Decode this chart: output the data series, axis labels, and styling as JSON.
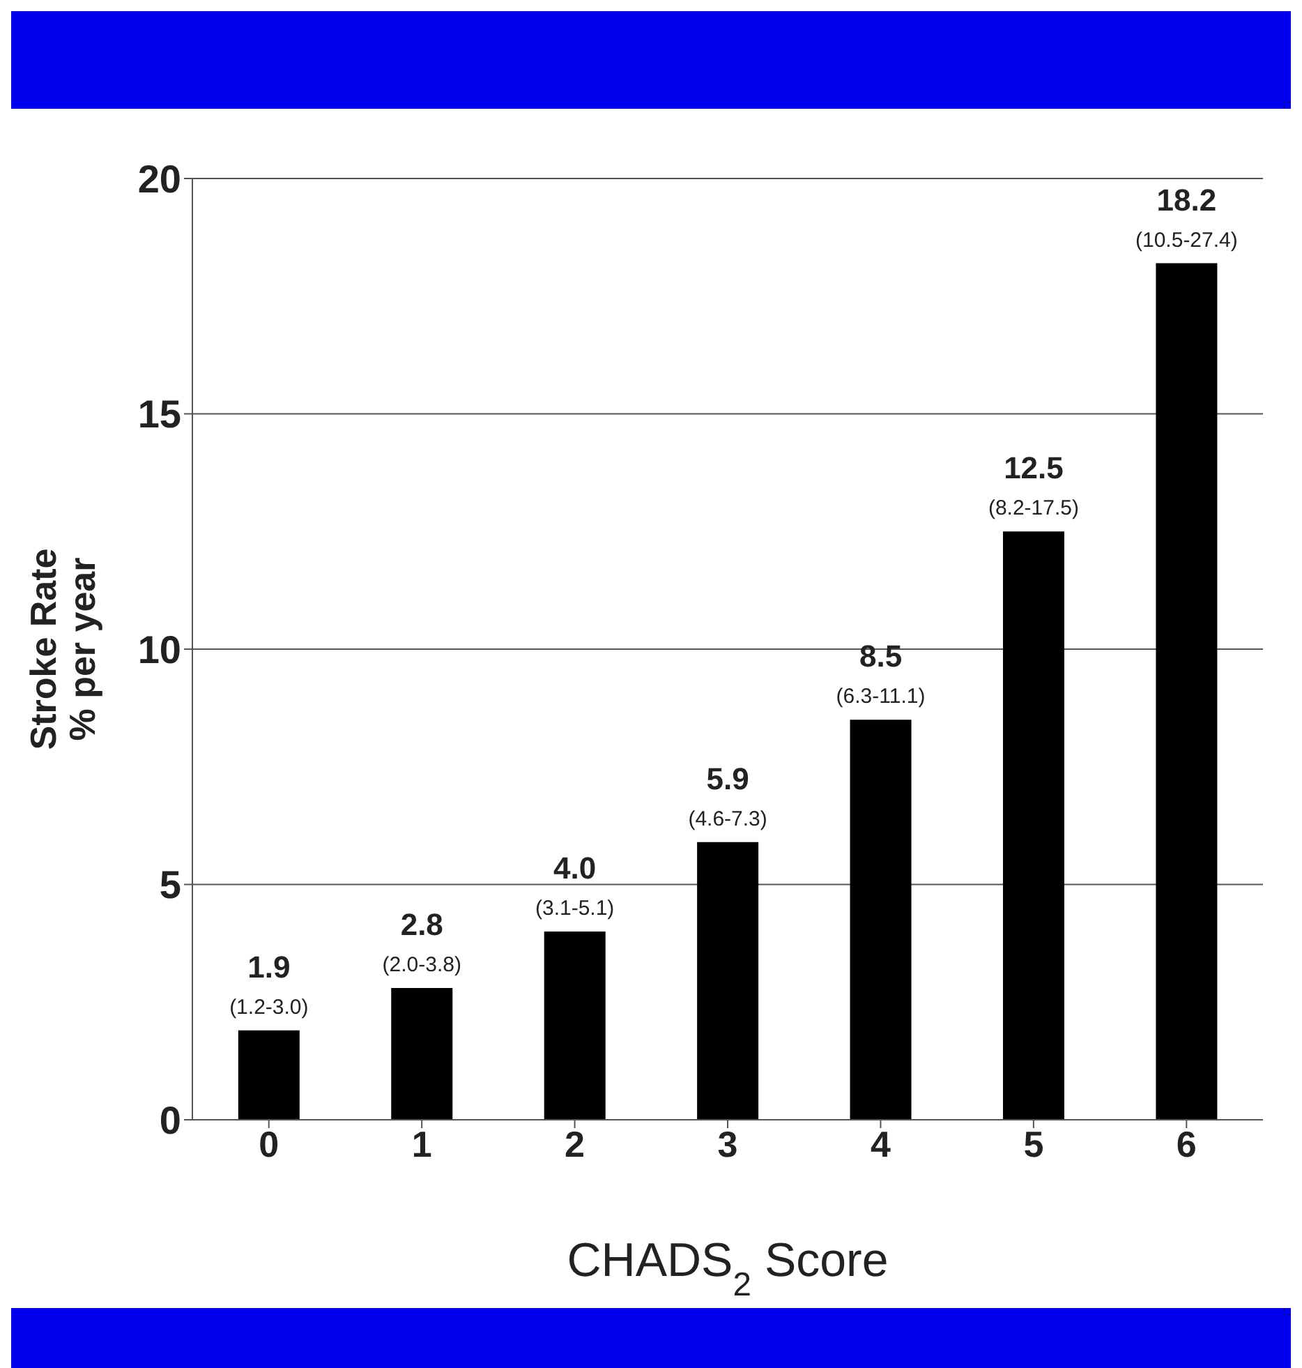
{
  "chart_data": {
    "type": "bar",
    "categories": [
      "0",
      "1",
      "2",
      "3",
      "4",
      "5",
      "6"
    ],
    "values": [
      1.9,
      2.8,
      4.0,
      5.9,
      8.5,
      12.5,
      18.2
    ],
    "value_labels": [
      "1.9",
      "2.8",
      "4.0",
      "5.9",
      "8.5",
      "12.5",
      "18.2"
    ],
    "color": "#000000",
    "ylabel": "Stroke Rate\n% per year",
    "xlabel": "CHADS$_{2}$ Score",
    "ylim": [
      0,
      20
    ],
    "yticks": [
      0,
      5,
      10,
      15,
      20
    ],
    "grid": "y",
    "annotations": [
      {
        "text": "(1.2-3.0)",
        "x": "0",
        "y": 1.9
      },
      {
        "text": "(2.0-3.8)",
        "x": "1",
        "y": 2.8
      },
      {
        "text": "(3.1-5.1)",
        "x": "2",
        "y": 4.0
      },
      {
        "text": "(4.6-7.3)",
        "x": "3",
        "y": 5.9
      },
      {
        "text": "(6.3-11.1)",
        "x": "4",
        "y": 8.5
      },
      {
        "text": "(8.2-17.5)",
        "x": "5",
        "y": 12.5
      },
      {
        "text": "(10.5-27.4)",
        "x": "6",
        "y": 18.2
      }
    ]
  }
}
